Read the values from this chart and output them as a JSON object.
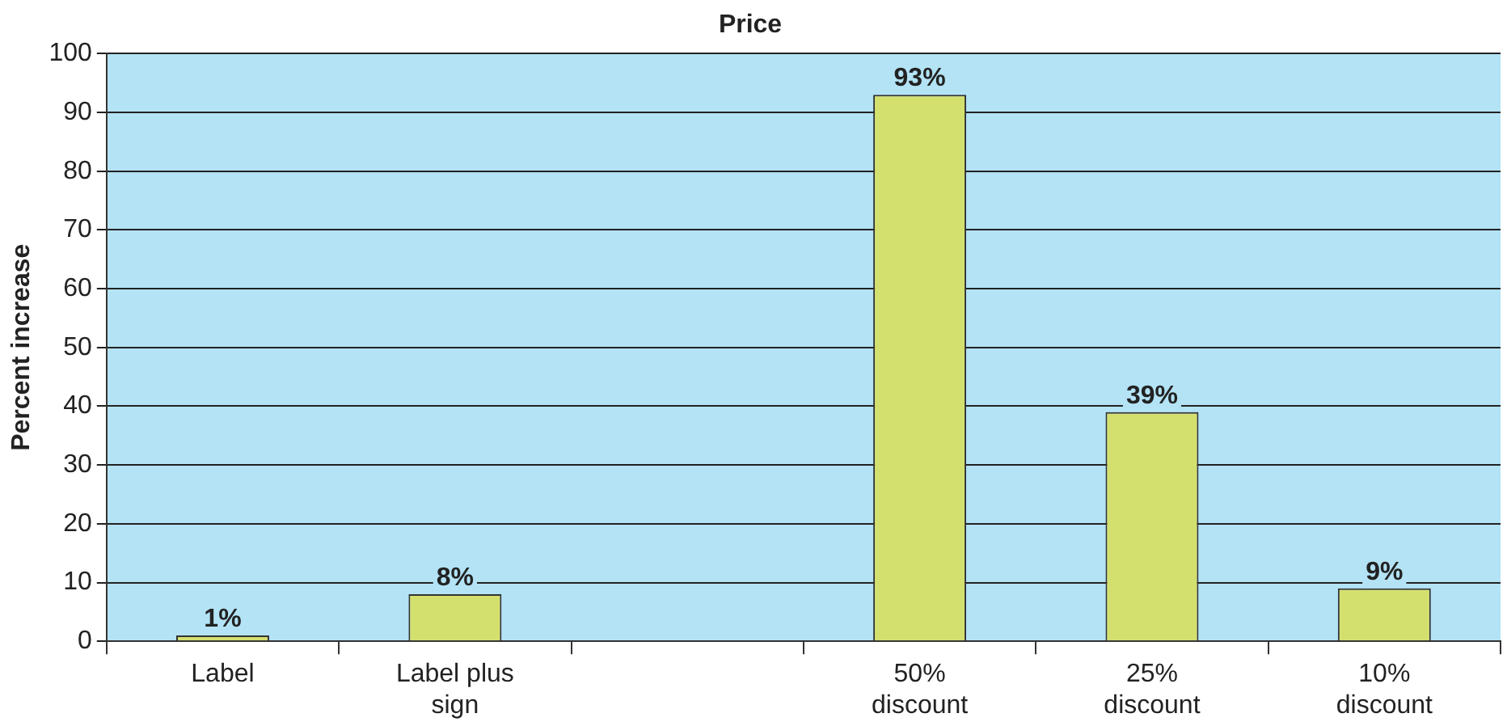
{
  "chart_data": {
    "type": "bar",
    "title": "Price",
    "ylabel": "Percent increase",
    "categories": [
      "Label",
      "Label plus sign",
      null,
      "50% discount",
      "25% discount",
      "10% discount"
    ],
    "values": [
      1,
      8,
      null,
      93,
      39,
      9
    ],
    "value_labels": [
      "1%",
      "8%",
      null,
      "93%",
      "39%",
      "9%"
    ],
    "color": "#d4e06e",
    "ylim": [
      0,
      100
    ],
    "yticks": [
      0,
      10,
      20,
      30,
      40,
      50,
      60,
      70,
      80,
      90,
      100
    ],
    "grid": "y",
    "legend": false
  }
}
